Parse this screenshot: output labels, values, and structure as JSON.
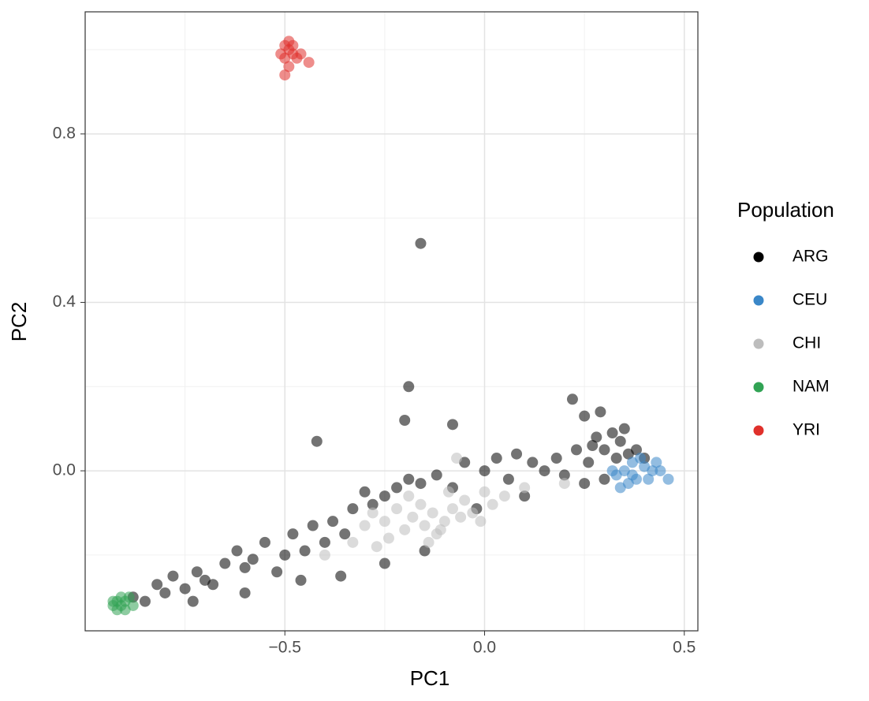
{
  "chart_data": {
    "type": "scatter",
    "x_label": "PC1",
    "y_label": "PC2",
    "legend_title": "Population",
    "xlim": [
      -1.0,
      0.534
    ],
    "ylim": [
      -0.38,
      1.09
    ],
    "xticks": [
      {
        "value": -0.5,
        "label": "−0.5"
      },
      {
        "value": 0,
        "label": "0.0"
      },
      0.5
    ],
    "yticks": [
      {
        "value": 0,
        "label": "0.0"
      },
      0.4,
      0.8
    ],
    "xminor": [
      -0.75,
      -0.25,
      0.25
    ],
    "yminor": [
      -0.2,
      0.2,
      0.6,
      1.0
    ],
    "grid": true,
    "legend": "right",
    "series": [
      {
        "name": "ARG",
        "color": "#000000",
        "x": [
          -0.16,
          -0.19,
          -0.2,
          -0.08,
          -0.42,
          0.22,
          0.29,
          0.25,
          -0.88,
          -0.85,
          -0.82,
          -0.8,
          -0.78,
          -0.75,
          -0.72,
          -0.7,
          -0.68,
          -0.65,
          -0.62,
          -0.6,
          -0.58,
          -0.55,
          -0.52,
          -0.5,
          -0.48,
          -0.45,
          -0.43,
          -0.4,
          -0.38,
          -0.35,
          -0.33,
          -0.3,
          -0.28,
          -0.25,
          -0.22,
          -0.19,
          -0.16,
          -0.12,
          -0.08,
          -0.05,
          0.0,
          0.03,
          0.06,
          0.08,
          0.12,
          0.15,
          0.18,
          0.2,
          0.23,
          0.26,
          0.28,
          0.3,
          0.32,
          0.34,
          0.36,
          0.38,
          0.4,
          0.3,
          0.25,
          0.1,
          -0.02,
          -0.15,
          -0.25,
          -0.36,
          -0.46,
          -0.6,
          -0.73,
          0.33,
          0.27,
          0.35
        ],
        "values": [
          0.54,
          0.2,
          0.12,
          0.11,
          0.07,
          0.17,
          0.14,
          0.13,
          -0.3,
          -0.31,
          -0.27,
          -0.29,
          -0.25,
          -0.28,
          -0.24,
          -0.26,
          -0.27,
          -0.22,
          -0.19,
          -0.23,
          -0.21,
          -0.17,
          -0.24,
          -0.2,
          -0.15,
          -0.19,
          -0.13,
          -0.17,
          -0.12,
          -0.15,
          -0.09,
          -0.05,
          -0.08,
          -0.06,
          -0.04,
          -0.02,
          -0.03,
          -0.01,
          -0.04,
          0.02,
          0.0,
          0.03,
          -0.02,
          0.04,
          0.02,
          0.0,
          0.03,
          -0.01,
          0.05,
          0.02,
          0.08,
          0.05,
          0.09,
          0.07,
          0.04,
          0.05,
          0.03,
          -0.02,
          -0.03,
          -0.06,
          -0.09,
          -0.19,
          -0.22,
          -0.25,
          -0.26,
          -0.29,
          -0.31,
          0.03,
          0.06,
          0.1
        ]
      },
      {
        "name": "CEU",
        "color": "#3a87c8",
        "x": [
          0.33,
          0.35,
          0.37,
          0.38,
          0.4,
          0.42,
          0.36,
          0.34,
          0.39,
          0.41,
          0.44,
          0.46,
          0.32,
          0.37,
          0.43
        ],
        "values": [
          -0.01,
          0.0,
          0.02,
          -0.02,
          0.01,
          0.0,
          -0.03,
          -0.04,
          0.03,
          -0.02,
          0.0,
          -0.02,
          0.0,
          -0.01,
          0.02
        ]
      },
      {
        "name": "CHI",
        "color": "#bdbdbd",
        "x": [
          -0.3,
          -0.28,
          -0.25,
          -0.22,
          -0.2,
          -0.18,
          -0.16,
          -0.15,
          -0.13,
          -0.12,
          -0.1,
          -0.08,
          -0.06,
          -0.05,
          -0.03,
          0.0,
          0.02,
          0.05,
          -0.07,
          -0.24,
          -0.27,
          -0.33,
          -0.4,
          0.1,
          0.2,
          -0.19,
          -0.11,
          -0.14,
          -0.09,
          -0.01
        ],
        "values": [
          -0.13,
          -0.1,
          -0.12,
          -0.09,
          -0.14,
          -0.11,
          -0.08,
          -0.13,
          -0.1,
          -0.15,
          -0.12,
          -0.09,
          -0.11,
          -0.07,
          -0.1,
          -0.05,
          -0.08,
          -0.06,
          0.03,
          -0.16,
          -0.18,
          -0.17,
          -0.2,
          -0.04,
          -0.03,
          -0.06,
          -0.14,
          -0.17,
          -0.05,
          -0.12
        ]
      },
      {
        "name": "NAM",
        "color": "#31a354",
        "x": [
          -0.93,
          -0.92,
          -0.91,
          -0.9,
          -0.92,
          -0.89,
          -0.91,
          -0.88,
          -0.93,
          -0.9
        ],
        "values": [
          -0.32,
          -0.33,
          -0.32,
          -0.31,
          -0.31,
          -0.3,
          -0.3,
          -0.32,
          -0.31,
          -0.33
        ]
      },
      {
        "name": "YRI",
        "color": "#e0302b",
        "x": [
          -0.5,
          -0.49,
          -0.48,
          -0.5,
          -0.47,
          -0.51,
          -0.49,
          -0.5,
          -0.49,
          -0.44,
          -0.46,
          -0.48
        ],
        "values": [
          1.01,
          1.0,
          0.99,
          0.98,
          0.98,
          0.99,
          1.02,
          0.94,
          0.96,
          0.97,
          0.99,
          1.01
        ]
      }
    ]
  }
}
